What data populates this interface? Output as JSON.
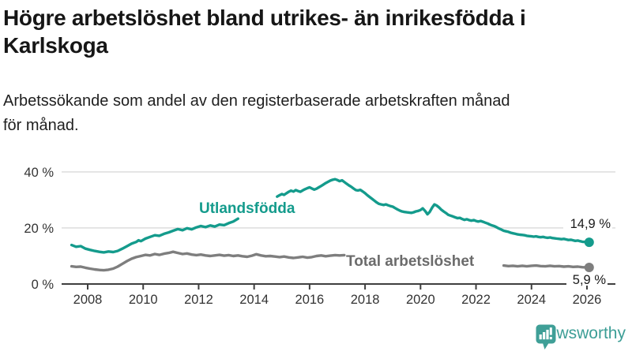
{
  "header": {
    "title_lines": [
      "Högre arbetslöshet bland utrikes- än inrikesfödda i",
      "Karlskoga"
    ],
    "subtitle_lines": [
      "Arbetssökande som andel av den registerbaserade arbetskraften månad",
      "för månad."
    ]
  },
  "chart_data": {
    "type": "line",
    "title": "Högre arbetslöshet bland utrikes- än inrikesfödda i Karlskoga",
    "subtitle": "Arbetssökande som andel av den registerbaserade arbetskraften månad för månad.",
    "xlabel": "",
    "ylabel": "",
    "ylim": [
      0,
      40
    ],
    "xlim": [
      2007.3,
      2026.6
    ],
    "grid": "horizontal-only",
    "legend_position": "inline-labels",
    "colors": {
      "grid": "#d9d9d9",
      "axis": "#3f3f3f",
      "tick_text": "#333333",
      "value_text": "#1a1a1a"
    },
    "y_ticks": [
      {
        "value": 40,
        "label": "40 %"
      },
      {
        "value": 20,
        "label": "20 %"
      },
      {
        "value": 0,
        "label": "0 %"
      }
    ],
    "x_label_years": [
      2008,
      2010,
      2012,
      2014,
      2016,
      2018,
      2020,
      2022,
      2024,
      2026
    ],
    "series": [
      {
        "id": "utlandsfodda",
        "name": "Utlandsfödda",
        "color": "#149b8c",
        "end_label": "14,9 %",
        "end_value": 14.9,
        "segments": [
          [
            [
              2007.42,
              13.9
            ],
            [
              2007.58,
              13.3
            ],
            [
              2007.75,
              13.5
            ],
            [
              2007.92,
              12.6
            ],
            [
              2008.08,
              12.2
            ],
            [
              2008.25,
              11.8
            ],
            [
              2008.42,
              11.5
            ],
            [
              2008.58,
              11.3
            ],
            [
              2008.75,
              11.6
            ],
            [
              2008.92,
              11.4
            ],
            [
              2009.08,
              11.8
            ],
            [
              2009.25,
              12.6
            ],
            [
              2009.42,
              13.5
            ],
            [
              2009.58,
              14.4
            ],
            [
              2009.75,
              15.0
            ],
            [
              2009.83,
              15.6
            ],
            [
              2009.92,
              15.3
            ],
            [
              2010.08,
              16.2
            ],
            [
              2010.25,
              16.8
            ],
            [
              2010.42,
              17.4
            ],
            [
              2010.58,
              17.2
            ],
            [
              2010.75,
              17.9
            ],
            [
              2010.92,
              18.4
            ],
            [
              2011.08,
              19.0
            ],
            [
              2011.25,
              19.6
            ],
            [
              2011.42,
              19.2
            ],
            [
              2011.58,
              19.9
            ],
            [
              2011.75,
              19.5
            ],
            [
              2011.92,
              20.2
            ],
            [
              2012.08,
              20.7
            ],
            [
              2012.25,
              20.3
            ],
            [
              2012.42,
              20.9
            ],
            [
              2012.58,
              20.5
            ],
            [
              2012.75,
              21.2
            ],
            [
              2012.92,
              21.0
            ],
            [
              2013.08,
              21.7
            ],
            [
              2013.25,
              22.3
            ],
            [
              2013.42,
              23.3
            ]
          ],
          [
            [
              2014.83,
              31.2
            ],
            [
              2014.92,
              31.7
            ],
            [
              2015.0,
              32.1
            ],
            [
              2015.08,
              31.8
            ],
            [
              2015.17,
              32.4
            ],
            [
              2015.25,
              32.9
            ],
            [
              2015.33,
              33.3
            ],
            [
              2015.42,
              33.0
            ],
            [
              2015.5,
              33.5
            ],
            [
              2015.58,
              33.2
            ],
            [
              2015.67,
              32.9
            ],
            [
              2015.75,
              33.4
            ],
            [
              2015.83,
              33.8
            ],
            [
              2015.92,
              34.2
            ],
            [
              2016.0,
              34.5
            ],
            [
              2016.08,
              34.1
            ],
            [
              2016.17,
              33.7
            ],
            [
              2016.25,
              34.0
            ],
            [
              2016.33,
              34.5
            ],
            [
              2016.42,
              35.0
            ],
            [
              2016.5,
              35.5
            ],
            [
              2016.58,
              36.0
            ],
            [
              2016.67,
              36.5
            ],
            [
              2016.75,
              36.9
            ],
            [
              2016.83,
              37.2
            ],
            [
              2016.92,
              37.4
            ],
            [
              2017.0,
              37.1
            ],
            [
              2017.08,
              36.7
            ],
            [
              2017.17,
              37.0
            ],
            [
              2017.25,
              36.4
            ],
            [
              2017.33,
              35.8
            ],
            [
              2017.42,
              35.2
            ],
            [
              2017.5,
              34.7
            ],
            [
              2017.58,
              34.1
            ],
            [
              2017.67,
              33.5
            ],
            [
              2017.75,
              33.4
            ],
            [
              2017.83,
              33.6
            ],
            [
              2017.92,
              33.0
            ],
            [
              2018.0,
              32.4
            ],
            [
              2018.08,
              31.7
            ],
            [
              2018.17,
              31.0
            ],
            [
              2018.25,
              30.4
            ],
            [
              2018.33,
              29.8
            ],
            [
              2018.42,
              29.1
            ],
            [
              2018.5,
              28.6
            ],
            [
              2018.58,
              28.4
            ],
            [
              2018.67,
              28.2
            ],
            [
              2018.75,
              28.4
            ],
            [
              2018.83,
              28.1
            ],
            [
              2018.92,
              27.8
            ],
            [
              2019.0,
              27.6
            ],
            [
              2019.08,
              27.1
            ],
            [
              2019.17,
              26.6
            ],
            [
              2019.25,
              26.2
            ],
            [
              2019.33,
              25.9
            ],
            [
              2019.42,
              25.7
            ],
            [
              2019.5,
              25.6
            ],
            [
              2019.58,
              25.5
            ],
            [
              2019.67,
              25.4
            ],
            [
              2019.75,
              25.6
            ],
            [
              2019.83,
              25.9
            ],
            [
              2019.92,
              26.1
            ],
            [
              2020.0,
              26.4
            ],
            [
              2020.08,
              27.0
            ],
            [
              2020.17,
              26.0
            ],
            [
              2020.25,
              24.9
            ],
            [
              2020.33,
              25.7
            ],
            [
              2020.42,
              27.3
            ],
            [
              2020.5,
              28.4
            ],
            [
              2020.58,
              28.0
            ],
            [
              2020.67,
              27.3
            ],
            [
              2020.75,
              26.5
            ],
            [
              2020.83,
              25.9
            ],
            [
              2020.92,
              25.3
            ],
            [
              2021.0,
              24.7
            ],
            [
              2021.08,
              24.4
            ],
            [
              2021.17,
              24.1
            ],
            [
              2021.25,
              23.8
            ],
            [
              2021.33,
              23.5
            ],
            [
              2021.42,
              23.6
            ],
            [
              2021.5,
              23.2
            ],
            [
              2021.58,
              22.9
            ],
            [
              2021.67,
              23.1
            ],
            [
              2021.75,
              22.8
            ],
            [
              2021.83,
              22.6
            ],
            [
              2021.92,
              22.8
            ],
            [
              2022.0,
              22.5
            ],
            [
              2022.08,
              22.3
            ],
            [
              2022.17,
              22.5
            ],
            [
              2022.25,
              22.2
            ],
            [
              2022.33,
              21.9
            ],
            [
              2022.42,
              21.6
            ],
            [
              2022.5,
              21.2
            ],
            [
              2022.58,
              20.9
            ],
            [
              2022.67,
              20.6
            ],
            [
              2022.75,
              20.2
            ],
            [
              2022.83,
              19.8
            ],
            [
              2022.92,
              19.4
            ],
            [
              2023.0,
              19.0
            ],
            [
              2023.08,
              18.8
            ],
            [
              2023.17,
              18.6
            ],
            [
              2023.25,
              18.3
            ],
            [
              2023.33,
              18.1
            ],
            [
              2023.42,
              17.9
            ],
            [
              2023.5,
              17.7
            ],
            [
              2023.58,
              17.6
            ],
            [
              2023.67,
              17.5
            ],
            [
              2023.75,
              17.4
            ],
            [
              2023.83,
              17.2
            ],
            [
              2023.92,
              17.1
            ],
            [
              2024.0,
              17.0
            ],
            [
              2024.08,
              16.9
            ],
            [
              2024.17,
              17.0
            ],
            [
              2024.25,
              16.8
            ],
            [
              2024.33,
              16.7
            ],
            [
              2024.42,
              16.8
            ],
            [
              2024.5,
              16.6
            ],
            [
              2024.58,
              16.5
            ],
            [
              2024.67,
              16.6
            ],
            [
              2024.75,
              16.4
            ],
            [
              2024.83,
              16.3
            ],
            [
              2024.92,
              16.2
            ],
            [
              2025.0,
              16.1
            ],
            [
              2025.08,
              16.0
            ],
            [
              2025.17,
              16.1
            ],
            [
              2025.25,
              15.9
            ],
            [
              2025.33,
              15.7
            ],
            [
              2025.42,
              15.8
            ],
            [
              2025.5,
              15.6
            ],
            [
              2025.58,
              15.4
            ],
            [
              2025.67,
              15.5
            ],
            [
              2025.75,
              15.3
            ],
            [
              2025.83,
              15.1
            ],
            [
              2025.92,
              15.0
            ],
            [
              2026.0,
              14.9
            ],
            [
              2026.08,
              14.9
            ]
          ]
        ]
      },
      {
        "id": "total",
        "name": "Total arbetslöshet",
        "color": "#7e7e7e",
        "label_color": "#6b6b6b",
        "end_label": "5,9 %",
        "end_value": 5.9,
        "segments": [
          [
            [
              2007.42,
              6.3
            ],
            [
              2007.58,
              6.1
            ],
            [
              2007.75,
              6.2
            ],
            [
              2007.92,
              5.8
            ],
            [
              2008.08,
              5.5
            ],
            [
              2008.25,
              5.2
            ],
            [
              2008.42,
              5.0
            ],
            [
              2008.58,
              4.9
            ],
            [
              2008.75,
              5.1
            ],
            [
              2008.92,
              5.5
            ],
            [
              2009.08,
              6.2
            ],
            [
              2009.25,
              7.2
            ],
            [
              2009.42,
              8.2
            ],
            [
              2009.58,
              9.0
            ],
            [
              2009.75,
              9.6
            ],
            [
              2009.92,
              10.0
            ],
            [
              2010.08,
              10.4
            ],
            [
              2010.25,
              10.2
            ],
            [
              2010.42,
              10.7
            ],
            [
              2010.58,
              10.4
            ],
            [
              2010.75,
              10.8
            ],
            [
              2010.92,
              11.1
            ],
            [
              2011.08,
              11.5
            ],
            [
              2011.25,
              11.1
            ],
            [
              2011.42,
              10.7
            ],
            [
              2011.58,
              10.9
            ],
            [
              2011.75,
              10.5
            ],
            [
              2011.92,
              10.3
            ],
            [
              2012.08,
              10.5
            ],
            [
              2012.25,
              10.2
            ],
            [
              2012.42,
              10.0
            ],
            [
              2012.58,
              10.2
            ],
            [
              2012.75,
              10.4
            ],
            [
              2012.92,
              10.1
            ],
            [
              2013.08,
              10.3
            ],
            [
              2013.25,
              10.0
            ],
            [
              2013.42,
              10.2
            ],
            [
              2013.58,
              9.9
            ],
            [
              2013.75,
              9.7
            ],
            [
              2013.92,
              10.1
            ],
            [
              2014.08,
              10.6
            ],
            [
              2014.25,
              10.2
            ],
            [
              2014.42,
              9.9
            ],
            [
              2014.58,
              10.0
            ],
            [
              2014.75,
              9.8
            ],
            [
              2014.92,
              9.6
            ],
            [
              2015.08,
              9.8
            ],
            [
              2015.25,
              9.5
            ],
            [
              2015.42,
              9.3
            ],
            [
              2015.58,
              9.5
            ],
            [
              2015.75,
              9.7
            ],
            [
              2015.92,
              9.4
            ],
            [
              2016.08,
              9.6
            ],
            [
              2016.25,
              10.0
            ],
            [
              2016.42,
              10.2
            ],
            [
              2016.58,
              9.9
            ],
            [
              2016.75,
              10.1
            ],
            [
              2016.92,
              10.3
            ],
            [
              2017.08,
              10.2
            ],
            [
              2017.25,
              10.3
            ]
          ],
          [
            [
              2023.0,
              6.6
            ],
            [
              2023.17,
              6.4
            ],
            [
              2023.33,
              6.5
            ],
            [
              2023.5,
              6.3
            ],
            [
              2023.67,
              6.5
            ],
            [
              2023.83,
              6.3
            ],
            [
              2024.0,
              6.5
            ],
            [
              2024.17,
              6.6
            ],
            [
              2024.33,
              6.4
            ],
            [
              2024.5,
              6.3
            ],
            [
              2024.67,
              6.5
            ],
            [
              2024.83,
              6.3
            ],
            [
              2025.0,
              6.4
            ],
            [
              2025.17,
              6.2
            ],
            [
              2025.33,
              6.3
            ],
            [
              2025.5,
              6.1
            ],
            [
              2025.67,
              6.2
            ],
            [
              2025.83,
              6.0
            ],
            [
              2026.0,
              5.9
            ],
            [
              2026.08,
              5.9
            ]
          ]
        ]
      }
    ]
  },
  "footer": {
    "brand": "Newsworthy",
    "brand_color": "#3c9e96",
    "logo_icon": "bar-chart-speech-bubble-icon"
  }
}
